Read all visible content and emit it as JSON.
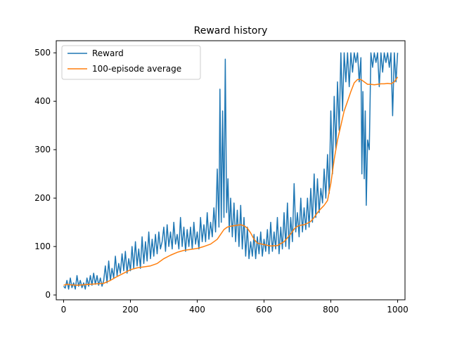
{
  "chart_data": {
    "type": "line",
    "title": "Reward history",
    "xlabel": "",
    "ylabel": "",
    "xlim": [
      -22,
      1022
    ],
    "ylim": [
      -10,
      525
    ],
    "xticks": [
      0,
      200,
      400,
      600,
      800,
      1000
    ],
    "yticks": [
      0,
      100,
      200,
      300,
      400,
      500
    ],
    "grid": false,
    "legend_position": "top-left",
    "series": [
      {
        "name": "Reward",
        "color": "#1f77b4",
        "points": [
          [
            0,
            18
          ],
          [
            5,
            14
          ],
          [
            10,
            30
          ],
          [
            15,
            12
          ],
          [
            20,
            35
          ],
          [
            25,
            15
          ],
          [
            30,
            25
          ],
          [
            35,
            12
          ],
          [
            40,
            40
          ],
          [
            45,
            18
          ],
          [
            50,
            30
          ],
          [
            55,
            15
          ],
          [
            60,
            25
          ],
          [
            65,
            12
          ],
          [
            70,
            35
          ],
          [
            75,
            18
          ],
          [
            80,
            40
          ],
          [
            85,
            20
          ],
          [
            90,
            45
          ],
          [
            95,
            22
          ],
          [
            100,
            40
          ],
          [
            105,
            20
          ],
          [
            110,
            35
          ],
          [
            115,
            18
          ],
          [
            120,
            30
          ],
          [
            125,
            60
          ],
          [
            130,
            25
          ],
          [
            135,
            70
          ],
          [
            140,
            30
          ],
          [
            145,
            55
          ],
          [
            150,
            35
          ],
          [
            155,
            80
          ],
          [
            160,
            40
          ],
          [
            165,
            65
          ],
          [
            170,
            45
          ],
          [
            175,
            85
          ],
          [
            180,
            50
          ],
          [
            185,
            90
          ],
          [
            190,
            45
          ],
          [
            195,
            75
          ],
          [
            200,
            50
          ],
          [
            205,
            100
          ],
          [
            210,
            55
          ],
          [
            215,
            110
          ],
          [
            220,
            60
          ],
          [
            225,
            95
          ],
          [
            230,
            55
          ],
          [
            235,
            120
          ],
          [
            240,
            65
          ],
          [
            245,
            110
          ],
          [
            250,
            70
          ],
          [
            255,
            130
          ],
          [
            260,
            75
          ],
          [
            265,
            115
          ],
          [
            270,
            80
          ],
          [
            275,
            125
          ],
          [
            280,
            85
          ],
          [
            285,
            130
          ],
          [
            290,
            95
          ],
          [
            295,
            110
          ],
          [
            300,
            140
          ],
          [
            305,
            90
          ],
          [
            310,
            145
          ],
          [
            315,
            100
          ],
          [
            320,
            130
          ],
          [
            325,
            95
          ],
          [
            330,
            150
          ],
          [
            335,
            105
          ],
          [
            340,
            125
          ],
          [
            345,
            95
          ],
          [
            350,
            160
          ],
          [
            355,
            100
          ],
          [
            360,
            140
          ],
          [
            365,
            90
          ],
          [
            370,
            135
          ],
          [
            375,
            100
          ],
          [
            380,
            140
          ],
          [
            385,
            95
          ],
          [
            390,
            150
          ],
          [
            395,
            105
          ],
          [
            400,
            130
          ],
          [
            405,
            95
          ],
          [
            410,
            160
          ],
          [
            415,
            110
          ],
          [
            420,
            145
          ],
          [
            425,
            110
          ],
          [
            430,
            170
          ],
          [
            435,
            115
          ],
          [
            440,
            150
          ],
          [
            445,
            120
          ],
          [
            450,
            180
          ],
          [
            455,
            130
          ],
          [
            460,
            260
          ],
          [
            465,
            140
          ],
          [
            468,
            425
          ],
          [
            472,
            150
          ],
          [
            476,
            380
          ],
          [
            480,
            160
          ],
          [
            484,
            487
          ],
          [
            488,
            170
          ],
          [
            492,
            240
          ],
          [
            496,
            130
          ],
          [
            500,
            200
          ],
          [
            505,
            120
          ],
          [
            510,
            190
          ],
          [
            515,
            110
          ],
          [
            520,
            175
          ],
          [
            525,
            100
          ],
          [
            530,
            185
          ],
          [
            535,
            95
          ],
          [
            540,
            160
          ],
          [
            545,
            80
          ],
          [
            550,
            140
          ],
          [
            555,
            75
          ],
          [
            560,
            110
          ],
          [
            565,
            80
          ],
          [
            570,
            125
          ],
          [
            575,
            75
          ],
          [
            580,
            120
          ],
          [
            585,
            85
          ],
          [
            590,
            130
          ],
          [
            595,
            80
          ],
          [
            600,
            115
          ],
          [
            605,
            90
          ],
          [
            610,
            135
          ],
          [
            615,
            85
          ],
          [
            620,
            150
          ],
          [
            625,
            90
          ],
          [
            630,
            130
          ],
          [
            635,
            95
          ],
          [
            640,
            160
          ],
          [
            645,
            85
          ],
          [
            650,
            140
          ],
          [
            655,
            95
          ],
          [
            660,
            170
          ],
          [
            665,
            100
          ],
          [
            670,
            190
          ],
          [
            675,
            95
          ],
          [
            680,
            160
          ],
          [
            685,
            110
          ],
          [
            690,
            230
          ],
          [
            695,
            130
          ],
          [
            700,
            170
          ],
          [
            705,
            120
          ],
          [
            710,
            200
          ],
          [
            715,
            130
          ],
          [
            720,
            180
          ],
          [
            725,
            135
          ],
          [
            730,
            200
          ],
          [
            735,
            140
          ],
          [
            740,
            220
          ],
          [
            745,
            150
          ],
          [
            750,
            250
          ],
          [
            755,
            160
          ],
          [
            760,
            240
          ],
          [
            765,
            170
          ],
          [
            770,
            220
          ],
          [
            775,
            190
          ],
          [
            780,
            260
          ],
          [
            785,
            200
          ],
          [
            790,
            290
          ],
          [
            795,
            210
          ],
          [
            800,
            380
          ],
          [
            805,
            250
          ],
          [
            810,
            410
          ],
          [
            815,
            300
          ],
          [
            820,
            440
          ],
          [
            825,
            340
          ],
          [
            830,
            500
          ],
          [
            835,
            380
          ],
          [
            840,
            500
          ],
          [
            845,
            440
          ],
          [
            850,
            500
          ],
          [
            855,
            430
          ],
          [
            860,
            500
          ],
          [
            865,
            460
          ],
          [
            870,
            500
          ],
          [
            875,
            480
          ],
          [
            880,
            500
          ],
          [
            885,
            440
          ],
          [
            890,
            490
          ],
          [
            893,
            250
          ],
          [
            896,
            420
          ],
          [
            900,
            240
          ],
          [
            903,
            380
          ],
          [
            906,
            185
          ],
          [
            910,
            320
          ],
          [
            915,
            300
          ],
          [
            920,
            500
          ],
          [
            925,
            470
          ],
          [
            930,
            500
          ],
          [
            935,
            480
          ],
          [
            940,
            500
          ],
          [
            945,
            430
          ],
          [
            950,
            500
          ],
          [
            955,
            460
          ],
          [
            960,
            500
          ],
          [
            965,
            480
          ],
          [
            970,
            500
          ],
          [
            975,
            470
          ],
          [
            980,
            500
          ],
          [
            985,
            370
          ],
          [
            990,
            500
          ],
          [
            995,
            440
          ],
          [
            1000,
            500
          ]
        ]
      },
      {
        "name": "100-episode average",
        "color": "#ff7f0e",
        "points": [
          [
            0,
            20
          ],
          [
            10,
            22
          ],
          [
            20,
            21
          ],
          [
            40,
            20
          ],
          [
            60,
            21
          ],
          [
            80,
            22
          ],
          [
            100,
            23
          ],
          [
            120,
            24
          ],
          [
            140,
            30
          ],
          [
            160,
            38
          ],
          [
            180,
            45
          ],
          [
            200,
            52
          ],
          [
            220,
            56
          ],
          [
            240,
            58
          ],
          [
            260,
            60
          ],
          [
            280,
            65
          ],
          [
            300,
            75
          ],
          [
            320,
            82
          ],
          [
            340,
            88
          ],
          [
            360,
            92
          ],
          [
            380,
            94
          ],
          [
            400,
            96
          ],
          [
            420,
            100
          ],
          [
            440,
            105
          ],
          [
            460,
            115
          ],
          [
            470,
            125
          ],
          [
            480,
            135
          ],
          [
            490,
            140
          ],
          [
            500,
            142
          ],
          [
            520,
            144
          ],
          [
            530,
            145
          ],
          [
            540,
            143
          ],
          [
            550,
            138
          ],
          [
            560,
            128
          ],
          [
            570,
            115
          ],
          [
            580,
            107
          ],
          [
            600,
            104
          ],
          [
            620,
            101
          ],
          [
            640,
            102
          ],
          [
            660,
            110
          ],
          [
            670,
            118
          ],
          [
            680,
            126
          ],
          [
            690,
            136
          ],
          [
            700,
            142
          ],
          [
            710,
            144
          ],
          [
            720,
            145
          ],
          [
            730,
            148
          ],
          [
            740,
            152
          ],
          [
            750,
            160
          ],
          [
            760,
            170
          ],
          [
            770,
            178
          ],
          [
            780,
            185
          ],
          [
            790,
            195
          ],
          [
            800,
            230
          ],
          [
            810,
            280
          ],
          [
            820,
            320
          ],
          [
            830,
            350
          ],
          [
            840,
            380
          ],
          [
            850,
            400
          ],
          [
            860,
            420
          ],
          [
            870,
            438
          ],
          [
            880,
            445
          ],
          [
            890,
            445
          ],
          [
            900,
            440
          ],
          [
            910,
            435
          ],
          [
            920,
            435
          ],
          [
            930,
            434
          ],
          [
            940,
            435
          ],
          [
            950,
            436
          ],
          [
            960,
            436
          ],
          [
            970,
            437
          ],
          [
            980,
            436
          ],
          [
            990,
            440
          ],
          [
            1000,
            450
          ]
        ]
      }
    ]
  }
}
